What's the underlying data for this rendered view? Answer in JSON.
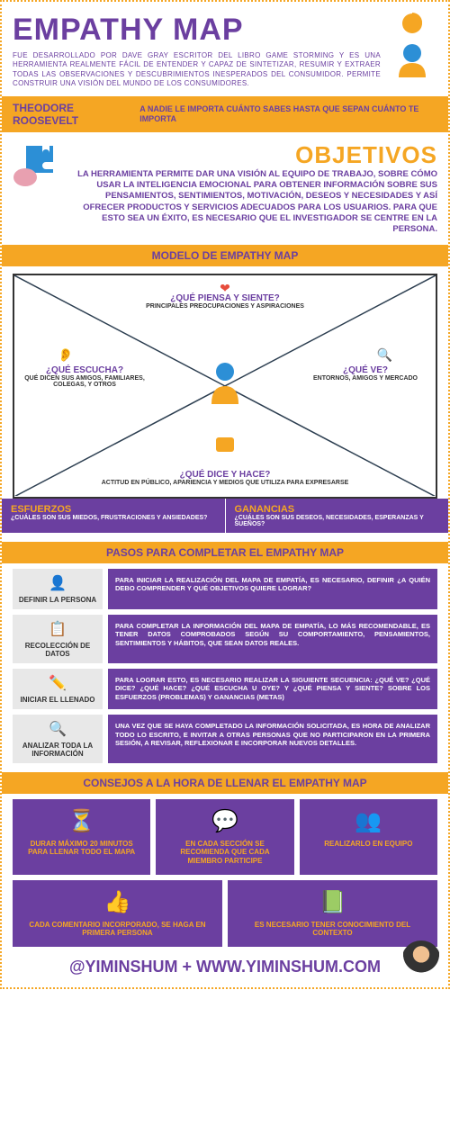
{
  "title": "EMPATHY MAP",
  "intro": "FUE DESARROLLADO POR DAVE GRAY ESCRITOR DEL LIBRO GAME STORMING Y ES UNA HERRAMIENTA REALMENTE FÁCIL DE ENTENDER Y CAPAZ DE SINTETIZAR, RESUMIR Y EXTRAER TODAS LAS OBSERVACIONES Y DESCUBRIMIENTOS INESPERADOS DEL CONSUMIDOR. PERMITE CONSTRUIR UNA VISIÓN DEL MUNDO DE LOS CONSUMIDORES.",
  "quote": {
    "name": "THEODORE ROOSEVELT",
    "text": "A NADIE LE IMPORTA CUÁNTO SABES HASTA QUE SEPAN CUÁNTO TE IMPORTA"
  },
  "objectives": {
    "title": "OBJETIVOS",
    "text": "LA HERRAMIENTA PERMITE DAR UNA VISIÓN AL EQUIPO DE TRABAJO, SOBRE CÓMO USAR LA INTELIGENCIA EMOCIONAL PARA OBTENER INFORMACIÓN SOBRE SUS PENSAMIENTOS, SENTIMIENTOS, MOTIVACIÓN, DESEOS Y NECESIDADES Y ASÍ OFRECER PRODUCTOS Y SERVICIOS ADECUADOS PARA LOS USUARIOS. PARA QUE ESTO SEA UN ÉXITO, ES NECESARIO QUE EL INVESTIGADOR SE CENTRE EN LA PERSONA."
  },
  "model": {
    "header": "MODELO DE EMPATHY MAP",
    "top": {
      "q": "¿QUÉ PIENSA Y SIENTE?",
      "s": "PRINCIPALES PREOCUPACIONES Y ASPIRACIONES"
    },
    "left": {
      "q": "¿QUÉ ESCUCHA?",
      "s": "QUÉ DICEN SUS AMIGOS, FAMILIARES, COLEGAS, Y OTROS"
    },
    "right": {
      "q": "¿QUÉ VE?",
      "s": "ENTORNOS, AMIGOS Y MERCADO"
    },
    "bottom": {
      "q": "¿QUÉ DICE Y HACE?",
      "s": "ACTITUD EN PÚBLICO, APARIENCIA Y MEDIOS QUE UTILIZA PARA EXPRESARSE"
    }
  },
  "efforts": {
    "title": "ESFUERZOS",
    "text": "¿CUÁLES SON SUS MIEDOS, FRUSTRACIONES Y ANSIEDADES?"
  },
  "gains": {
    "title": "GANANCIAS",
    "text": "¿CUÁLES SON SUS DESEOS, NECESIDADES, ESPERANZAS Y SUEÑOS?"
  },
  "steps": {
    "header": "PASOS PARA COMPLETAR EL EMPATHY MAP",
    "items": [
      {
        "icon": "👤",
        "label": "DEFINIR LA PERSONA",
        "text": "PARA INICIAR LA REALIZACIÓN DEL MAPA DE EMPATÍA, ES NECESARIO, DEFINIR ¿A QUIÉN DEBO COMPRENDER Y QUÉ OBJETIVOS QUIERE LOGRAR?"
      },
      {
        "icon": "📋",
        "label": "RECOLECCIÓN DE DATOS",
        "text": "PARA COMPLETAR LA INFORMACIÓN DEL MAPA DE EMPATÍA, LO MÁS RECOMENDABLE, ES TENER DATOS COMPROBADOS SEGÚN SU COMPORTAMIENTO, PENSAMIENTOS, SENTIMIENTOS Y HÁBITOS, QUE SEAN DATOS REALES."
      },
      {
        "icon": "✏️",
        "label": "INICIAR EL LLENADO",
        "text": "PARA LOGRAR ESTO, ES NECESARIO REALIZAR LA SIGUIENTE SECUENCIA: ¿QUÉ VE? ¿QUÉ DICE? ¿QUÉ HACE? ¿QUÉ ESCUCHA U OYE? Y ¿QUÉ PIENSA Y SIENTE? SOBRE LOS ESFUERZOS (PROBLEMAS) Y GANANCIAS (METAS)"
      },
      {
        "icon": "🔍",
        "label": "ANALIZAR TODA LA INFORMACIÓN",
        "text": "UNA VEZ QUE SE HAYA COMPLETADO LA INFORMACIÓN SOLICITADA, ES HORA DE ANALIZAR TODO LO ESCRITO, E INVITAR A OTRAS PERSONAS QUE NO PARTICIPARON EN LA PRIMERA SESIÓN, A REVISAR, REFLEXIONAR E INCORPORAR NUEVOS DETALLES."
      }
    ]
  },
  "tips": {
    "header": "CONSEJOS A LA HORA DE LLENAR EL EMPATHY MAP",
    "row1": [
      {
        "icon": "⏳",
        "text": "DURAR MÁXIMO 20 MINUTOS PARA LLENAR TODO EL MAPA",
        "iconColor": "#f5a623"
      },
      {
        "icon": "💬",
        "text": "EN CADA SECCIÓN SE RECOMIENDA QUE CADA MIEMBRO PARTICIPE",
        "iconColor": "#2c8fd6"
      },
      {
        "icon": "👥",
        "text": "REALIZARLO EN EQUIPO",
        "iconColor": "#f5a623"
      }
    ],
    "row2": [
      {
        "icon": "👍",
        "text": "CADA COMENTARIO INCORPORADO, SE HAGA EN PRIMERA PERSONA",
        "iconColor": "#f5a623"
      },
      {
        "icon": "📗",
        "text": "ES NECESARIO TENER CONOCIMIENTO DEL CONTEXTO",
        "iconColor": "#27ae60"
      }
    ]
  },
  "footer": "@YIMINSHUM + WWW.YIMINSHUM.COM",
  "colors": {
    "purple": "#6b3fa0",
    "orange": "#f5a623",
    "blue": "#2c8fd6"
  }
}
